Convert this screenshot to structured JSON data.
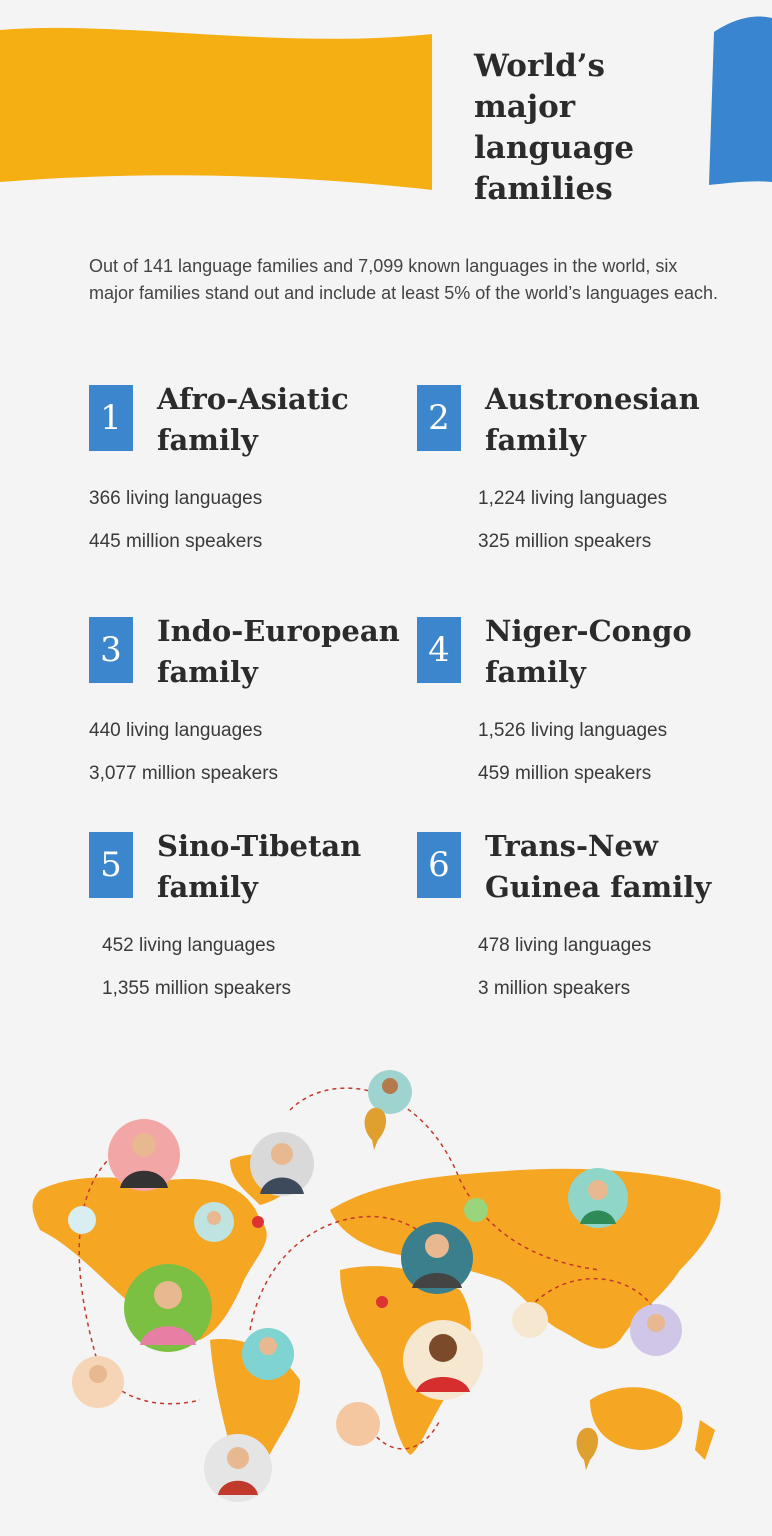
{
  "header": {
    "title": "World’s major language families"
  },
  "intro": "Out of 141 language families and 7,099 known languages in the world, six major families stand out and include at least 5% of the world’s languages each.",
  "families": [
    {
      "number": "1",
      "name": "Afro-Asiatic family",
      "languages": "366 living languages",
      "speakers": "445 million speakers"
    },
    {
      "number": "2",
      "name": "Austronesian family",
      "languages": "1,224 living languages",
      "speakers": "325 million speakers"
    },
    {
      "number": "3",
      "name": "Indo-European family",
      "languages": "440 living languages",
      "speakers": "3,077 million speakers"
    },
    {
      "number": "4",
      "name": "Niger-Congo family",
      "languages": "1,526 living languages",
      "speakers": "459 million speakers"
    },
    {
      "number": "5",
      "name": "Sino-Tibetan family",
      "languages": "452 living languages",
      "speakers": "1,355 million speakers"
    },
    {
      "number": "6",
      "name": "Trans-New Guinea family",
      "languages": "478 living languages",
      "speakers": "3 million speakers"
    }
  ]
}
